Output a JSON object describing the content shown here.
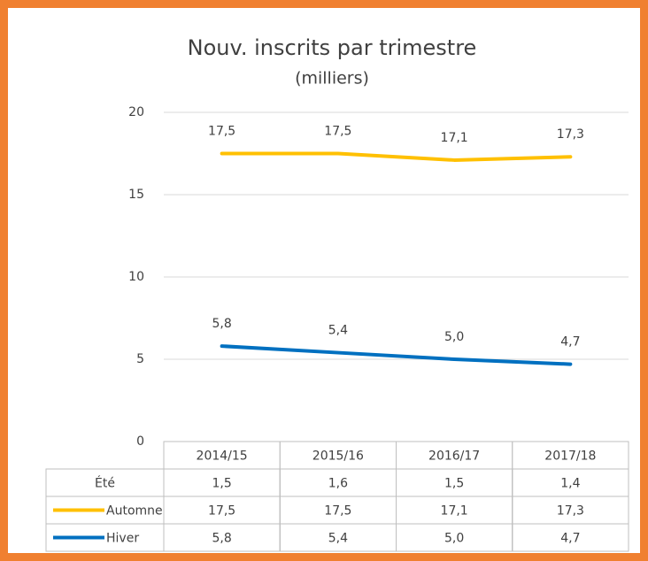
{
  "chart_data": {
    "type": "line",
    "title": "Nouv. inscrits par trimestre",
    "subtitle": "(milliers)",
    "categories": [
      "2014/15",
      "2015/16",
      "2016/17",
      "2017/18"
    ],
    "series": [
      {
        "name": "Été",
        "values": [
          1.5,
          1.6,
          1.5,
          1.4
        ],
        "value_labels": [
          "1,5",
          "1,6",
          "1,5",
          "1,4"
        ]
      },
      {
        "name": "Automne",
        "color": "#ffc000",
        "values": [
          17.5,
          17.5,
          17.1,
          17.3
        ],
        "value_labels": [
          "17,5",
          "17,5",
          "17,1",
          "17,3"
        ]
      },
      {
        "name": "Hiver",
        "color": "#0070c0",
        "values": [
          5.8,
          5.4,
          5.0,
          4.7
        ],
        "value_labels": [
          "5,8",
          "5,4",
          "5,0",
          "4,7"
        ]
      }
    ],
    "ylim": [
      0,
      20
    ],
    "yticks": [
      0,
      5,
      10,
      15,
      20
    ],
    "grid": true
  }
}
